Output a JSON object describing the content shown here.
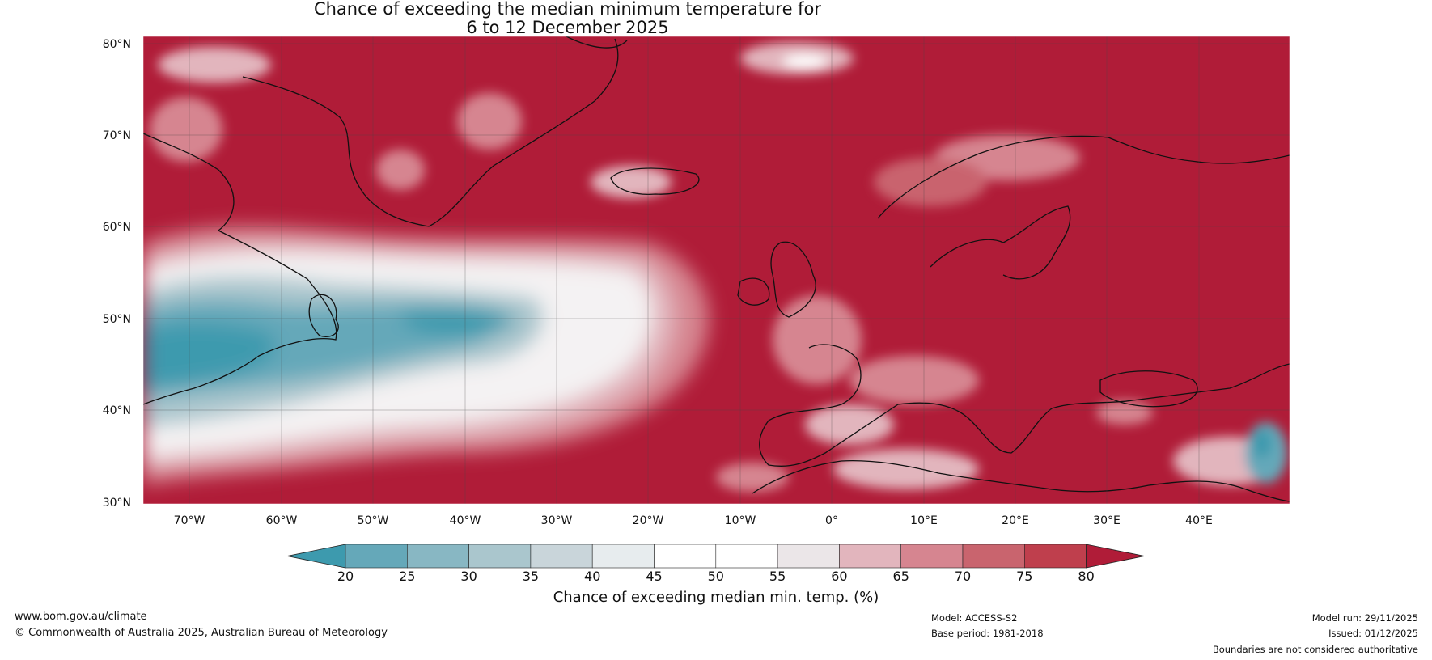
{
  "title": {
    "line1": "Chance of exceeding the median minimum temperature for",
    "line2": "6 to 12 December 2025"
  },
  "map": {
    "lat_labels": [
      "80°N",
      "70°N",
      "60°N",
      "50°N",
      "40°N",
      "30°N"
    ],
    "lon_labels": [
      "70°W",
      "60°W",
      "50°W",
      "40°W",
      "30°W",
      "20°W",
      "10°W",
      "0°",
      "10°E",
      "20°E",
      "30°E",
      "40°E"
    ],
    "lat_range": [
      30,
      81
    ],
    "lon_range": [
      -75,
      50
    ],
    "dominant_color": "#b01c38"
  },
  "colorbar": {
    "ticks": [
      "20",
      "25",
      "30",
      "35",
      "40",
      "45",
      "50",
      "55",
      "60",
      "65",
      "70",
      "75",
      "80"
    ],
    "colors": [
      "#3d9aae",
      "#65a8b9",
      "#88b7c3",
      "#aac6cd",
      "#c9d5da",
      "#e7ecee",
      "#ffffff",
      "#ffffff",
      "#ebe6e8",
      "#e2b5bd",
      "#d68590",
      "#c9646e",
      "#bf3f4d",
      "#b01c38"
    ],
    "label": "Chance of exceeding median min. temp. (%)"
  },
  "footer": {
    "url": "www.bom.gov.au/climate",
    "copyright": "© Commonwealth of Australia 2025, Australian Bureau of Meteorology",
    "model": "Model: ACCESS-S2",
    "base_period": "Base period: 1981-2018",
    "model_run": "Model run: 29/11/2025",
    "issued": "Issued: 01/12/2025",
    "disclaimer": "Boundaries are not considered authoritative"
  }
}
